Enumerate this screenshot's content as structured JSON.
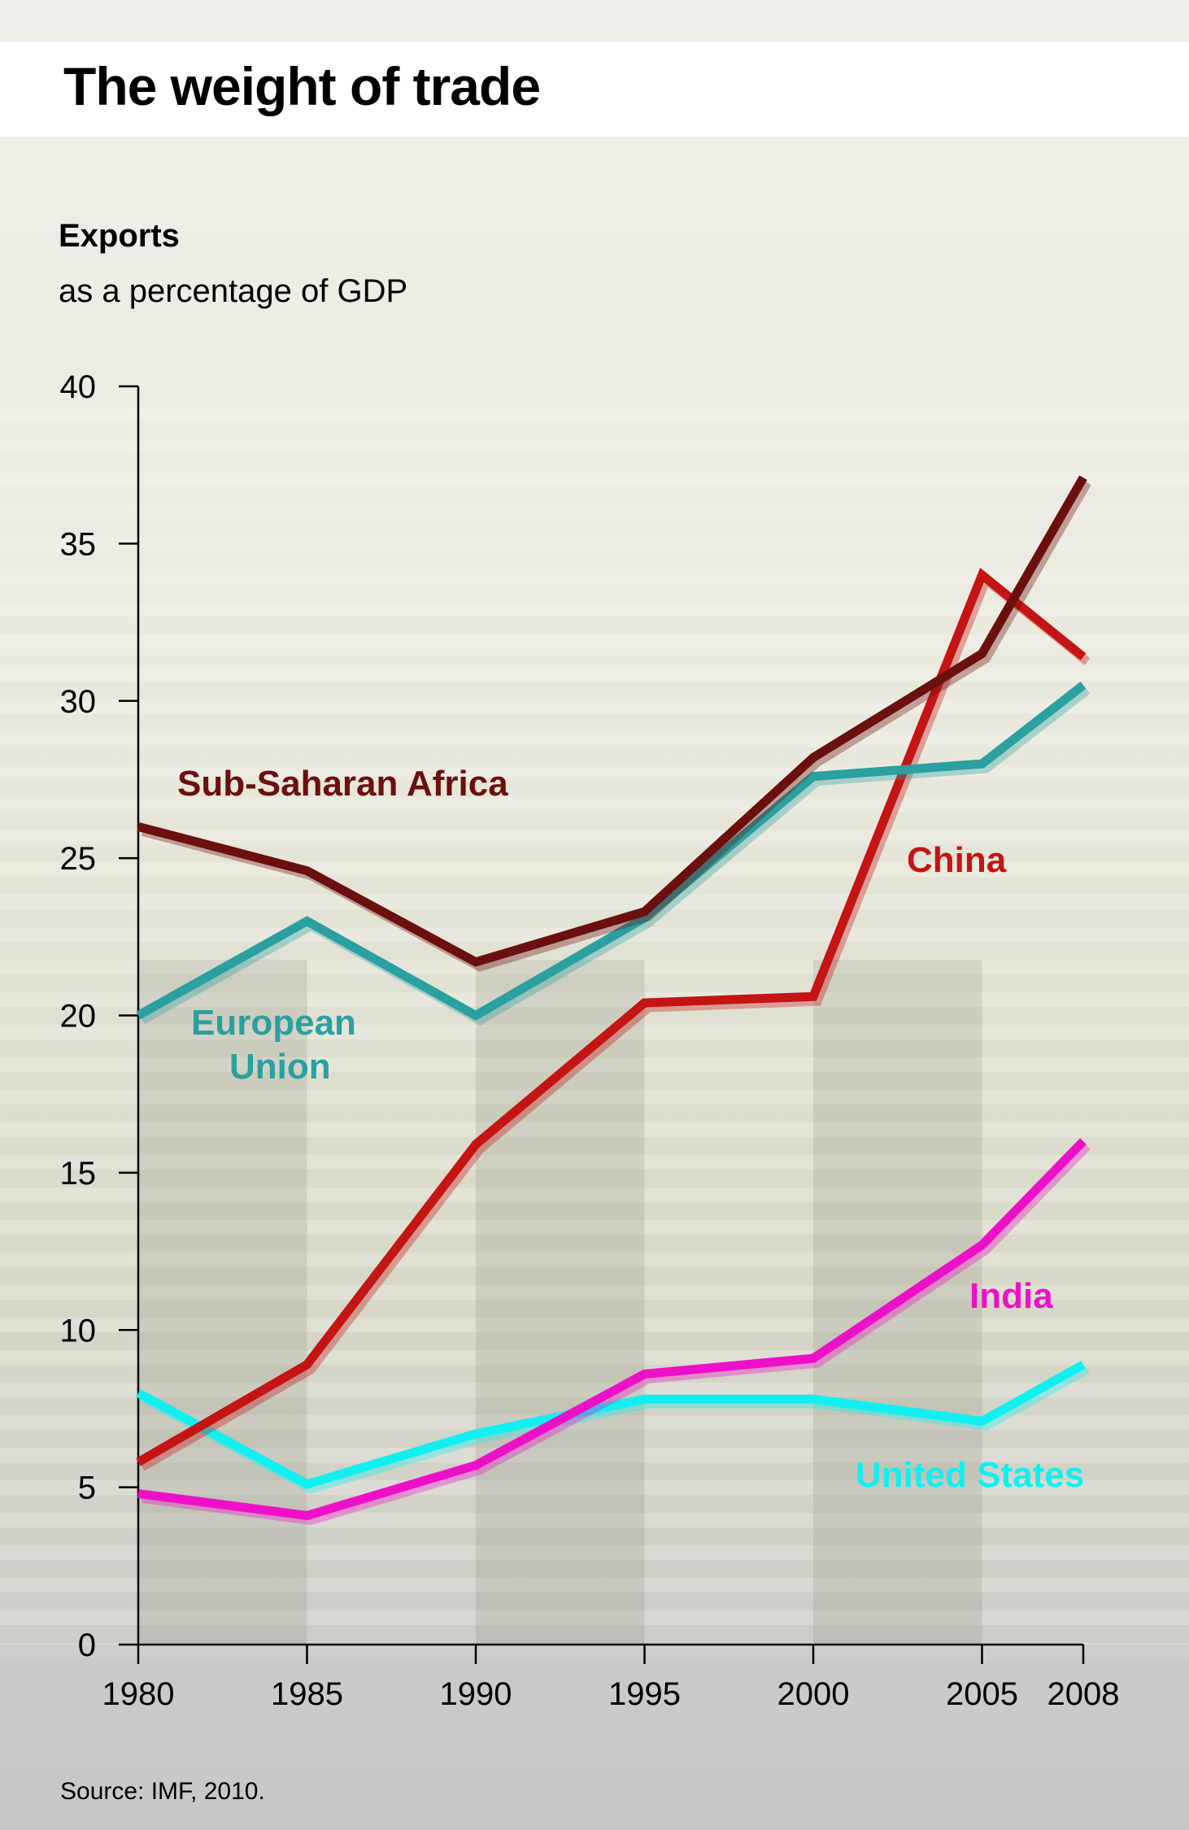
{
  "title": "The weight of trade",
  "subtitle": "Exports",
  "subtitle2": "as a percentage of GDP",
  "source": "Source: IMF, 2010.",
  "chart_data": {
    "type": "line",
    "x": [
      1980,
      1985,
      1990,
      1995,
      2000,
      2005,
      2008
    ],
    "x_tick_labels": [
      "1980",
      "1985",
      "1990",
      "1995",
      "2000",
      "2005",
      "2008"
    ],
    "y_ticks": [
      0,
      5,
      10,
      15,
      20,
      25,
      30,
      35,
      40
    ],
    "ylim": [
      0,
      40
    ],
    "xlim": [
      1980,
      2008
    ],
    "grid": false,
    "series": [
      {
        "name": "Sub-Saharan Africa",
        "color": "#6b0f0f",
        "values": [
          26.0,
          24.6,
          21.7,
          23.3,
          28.2,
          31.5,
          37.1
        ]
      },
      {
        "name": "European Union",
        "color": "#2aa0a0",
        "values": [
          20.0,
          23.0,
          20.0,
          23.1,
          27.6,
          28.0,
          30.5
        ]
      },
      {
        "name": "China",
        "color": "#c41414",
        "values": [
          5.8,
          8.9,
          15.9,
          20.4,
          20.6,
          34.0,
          31.4
        ]
      },
      {
        "name": "India",
        "color": "#ee10c8",
        "values": [
          4.8,
          4.1,
          5.7,
          8.6,
          9.1,
          12.7,
          16.0
        ]
      },
      {
        "name": "United States",
        "color": "#10f0f0",
        "values": [
          8.0,
          5.1,
          6.7,
          7.8,
          7.8,
          7.1,
          8.9
        ]
      }
    ]
  }
}
